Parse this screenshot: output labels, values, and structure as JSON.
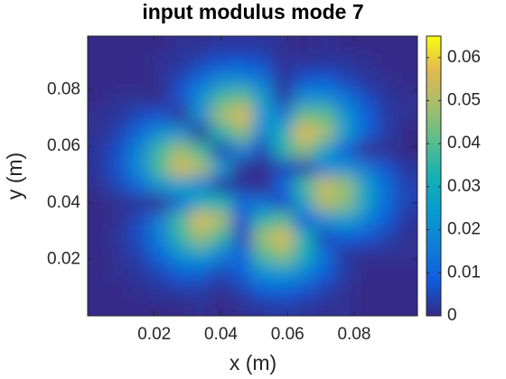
{
  "chart_data": {
    "type": "heatmap",
    "title": "input modulus mode 7",
    "xlabel": "x (m)",
    "ylabel": "y (m)",
    "colormap": "parula",
    "colorbar": true,
    "x": [
      0.0031,
      0.0093,
      0.0155,
      0.0217,
      0.0278,
      0.034,
      0.0402,
      0.0464,
      0.0526,
      0.0588,
      0.065,
      0.0712,
      0.0774,
      0.0836,
      0.0897,
      0.0959
    ],
    "y": [
      0.0031,
      0.0093,
      0.0155,
      0.0217,
      0.0278,
      0.034,
      0.0402,
      0.0464,
      0.0526,
      0.0588,
      0.065,
      0.0712,
      0.0774,
      0.0836,
      0.0897,
      0.0959
    ],
    "z": [
      [
        0,
        0,
        0,
        0,
        0,
        0.001,
        0,
        0.001,
        0.002,
        0.003,
        0.002,
        0.001,
        0.001,
        0,
        0,
        0
      ],
      [
        0,
        0,
        0.001,
        0.002,
        0.003,
        0.003,
        0.001,
        0.004,
        0.009,
        0.01,
        0.007,
        0.004,
        0.001,
        0,
        0,
        0
      ],
      [
        0,
        0.001,
        0.002,
        0.005,
        0.009,
        0.01,
        0.005,
        0.009,
        0.022,
        0.025,
        0.019,
        0.009,
        0.003,
        0,
        0,
        0
      ],
      [
        0,
        0.001,
        0.004,
        0.011,
        0.021,
        0.027,
        0.017,
        0.011,
        0.039,
        0.046,
        0.032,
        0.013,
        0.002,
        0.001,
        0.001,
        0.001
      ],
      [
        0,
        0.002,
        0.006,
        0.017,
        0.035,
        0.047,
        0.036,
        0.005,
        0.048,
        0.056,
        0.033,
        0.005,
        0.008,
        0.007,
        0.004,
        0.001
      ],
      [
        0,
        0.001,
        0.005,
        0.016,
        0.038,
        0.056,
        0.049,
        0.007,
        0.035,
        0.04,
        0.009,
        0.02,
        0.026,
        0.018,
        0.008,
        0.002
      ],
      [
        0,
        0.001,
        0.002,
        0.001,
        0.013,
        0.031,
        0.033,
        0.012,
        0.013,
        0.006,
        0.027,
        0.051,
        0.046,
        0.027,
        0.012,
        0.004
      ],
      [
        0.001,
        0.005,
        0.012,
        0.023,
        0.028,
        0.018,
        0.003,
        0.002,
        0,
        0.01,
        0.037,
        0.053,
        0.047,
        0.027,
        0.012,
        0.004
      ],
      [
        0.002,
        0.007,
        0.02,
        0.039,
        0.055,
        0.05,
        0.024,
        0.001,
        0.001,
        0.005,
        0.004,
        0.018,
        0.022,
        0.015,
        0.007,
        0.002
      ],
      [
        0.002,
        0.006,
        0.019,
        0.037,
        0.048,
        0.037,
        0.004,
        0.019,
        0.005,
        0.034,
        0.046,
        0.028,
        0.009,
        0.001,
        0.001,
        0
      ],
      [
        0.001,
        0.004,
        0.011,
        0.021,
        0.022,
        0.002,
        0.033,
        0.046,
        0.019,
        0.031,
        0.057,
        0.049,
        0.026,
        0.01,
        0.003,
        0
      ],
      [
        0.001,
        0.002,
        0.005,
        0.007,
        0.001,
        0.021,
        0.048,
        0.056,
        0.024,
        0.016,
        0.042,
        0.041,
        0.023,
        0.01,
        0.003,
        0.001
      ],
      [
        0,
        0.001,
        0.001,
        0,
        0.007,
        0.021,
        0.038,
        0.042,
        0.025,
        0.003,
        0.021,
        0.021,
        0.014,
        0.006,
        0.002,
        0.001
      ],
      [
        0,
        0,
        0,
        0.001,
        0.005,
        0.012,
        0.02,
        0.021,
        0.014,
        0.002,
        0.007,
        0.008,
        0.005,
        0.002,
        0.001,
        0
      ],
      [
        0,
        0,
        0,
        0.001,
        0.002,
        0.005,
        0.007,
        0.008,
        0.006,
        0.001,
        0.002,
        0.002,
        0.002,
        0.001,
        0,
        0
      ],
      [
        0,
        0,
        0,
        0,
        0.001,
        0.001,
        0.002,
        0.002,
        0.002,
        0.001,
        0,
        0.001,
        0,
        0,
        0,
        0
      ]
    ],
    "xlim": [
      0,
      0.099
    ],
    "ylim": [
      0,
      0.099
    ],
    "xticks": [
      0.02,
      0.04,
      0.06,
      0.08
    ],
    "yticks": [
      0.02,
      0.04,
      0.06,
      0.08
    ],
    "clim": [
      0,
      0.065
    ],
    "cticks": [
      0,
      0.01,
      0.02,
      0.03,
      0.04,
      0.05,
      0.06
    ]
  }
}
